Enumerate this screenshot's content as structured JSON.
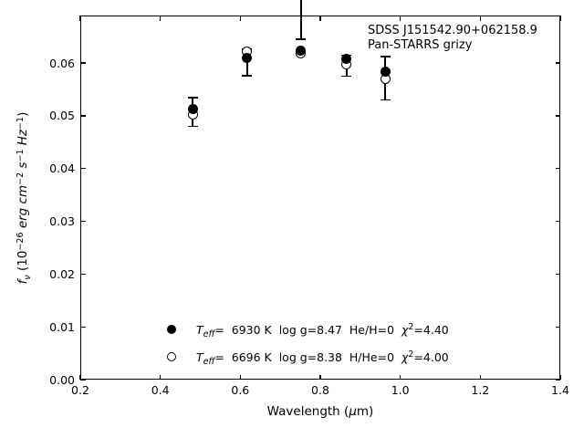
{
  "annotation": {
    "line1": "SDSS J151542.90+062158.9",
    "line2": "Pan-STARRS grizy"
  },
  "axes": {
    "xlabel_pre": "Wavelength (",
    "xlabel_mu": "μ",
    "xlabel_post": "m)",
    "ylabel_parts": [
      [
        "f",
        "i"
      ],
      [
        "ν",
        "sbi"
      ],
      [
        " (10",
        "n"
      ],
      [
        "−26",
        "sp"
      ],
      [
        " ",
        "n"
      ],
      [
        "erg",
        "i"
      ],
      [
        " ",
        "n"
      ],
      [
        "cm",
        "i"
      ],
      [
        "−2",
        "sp"
      ],
      [
        " ",
        "n"
      ],
      [
        "s",
        "i"
      ],
      [
        "−1",
        "sp"
      ],
      [
        " ",
        "n"
      ],
      [
        "Hz",
        "i"
      ],
      [
        "−1",
        "sp"
      ],
      [
        ")",
        "n"
      ]
    ]
  },
  "legend": {
    "rows": [
      {
        "marker": "filled-circle",
        "t": "T",
        "t_sub": "eff",
        "body": "=  6930 K  log g=8.47  He/H=0  ",
        "chi": "χ",
        "chi_sup": "2",
        "chi_tail": "=4.40"
      },
      {
        "marker": "open-circle",
        "t": "T",
        "t_sub": "eff",
        "body": "=  6696 K  log g=8.38  H/He=0  ",
        "chi": "χ",
        "chi_sup": "2",
        "chi_tail": "=4.00"
      }
    ]
  },
  "colors": {
    "foreground": "#000000",
    "background": "#ffffff"
  },
  "chart_data": {
    "type": "scatter",
    "title": "",
    "annotation": [
      "SDSS J151542.90+062158.9",
      "Pan-STARRS grizy"
    ],
    "xlabel": "Wavelength (μm)",
    "ylabel": "f_ν (10^−26 erg cm^−2 s^−1 Hz^−1)",
    "xlim": [
      0.2,
      1.4
    ],
    "ylim": [
      0,
      0.069
    ],
    "xticks": [
      0.2,
      0.4,
      0.6,
      0.8,
      1.0,
      1.2,
      1.4
    ],
    "xtick_labels": [
      "0.2",
      "0.4",
      "0.6",
      "0.8",
      "1.0",
      "1.2",
      "1.4"
    ],
    "yticks": [
      0.0,
      0.01,
      0.02,
      0.03,
      0.04,
      0.05,
      0.06
    ],
    "ytick_labels": [
      "0.00",
      "0.01",
      "0.02",
      "0.03",
      "0.04",
      "0.05",
      "0.06"
    ],
    "grid": false,
    "tick_direction": "in",
    "legend_position": "lower-center-left",
    "series": [
      {
        "name": "observed Pan-STARRS grizy photometry",
        "marker": "errorbar",
        "points": [
          {
            "x": 0.481,
            "y": 0.0507,
            "yerr": 0.0027
          },
          {
            "x": 0.617,
            "y": 0.0601,
            "yerr": 0.0025
          },
          {
            "x": 0.866,
            "y": 0.0595,
            "yerr": 0.002
          },
          {
            "x": 0.962,
            "y": 0.0571,
            "yerr": 0.0041
          }
        ]
      },
      {
        "name": "model Teff=6930 K log g=8.47 He/H=0 chi2=4.40",
        "marker": "filled-circle",
        "points": [
          {
            "x": 0.481,
            "y": 0.0512
          },
          {
            "x": 0.617,
            "y": 0.0609
          },
          {
            "x": 0.752,
            "y": 0.0624
          },
          {
            "x": 0.866,
            "y": 0.0607
          },
          {
            "x": 0.962,
            "y": 0.0584
          }
        ]
      },
      {
        "name": "model Teff=6696 K log g=8.38 H/He=0 chi2=4.00",
        "marker": "open-circle",
        "points": [
          {
            "x": 0.481,
            "y": 0.0502
          },
          {
            "x": 0.617,
            "y": 0.0622
          },
          {
            "x": 0.752,
            "y": 0.0618
          },
          {
            "x": 0.866,
            "y": 0.0598
          },
          {
            "x": 0.962,
            "y": 0.057
          }
        ]
      }
    ],
    "clipped_errorbar": {
      "x": 0.752,
      "lower_cap_y": 0.0645,
      "note": "error bar limb extends above the top of the plot"
    }
  }
}
